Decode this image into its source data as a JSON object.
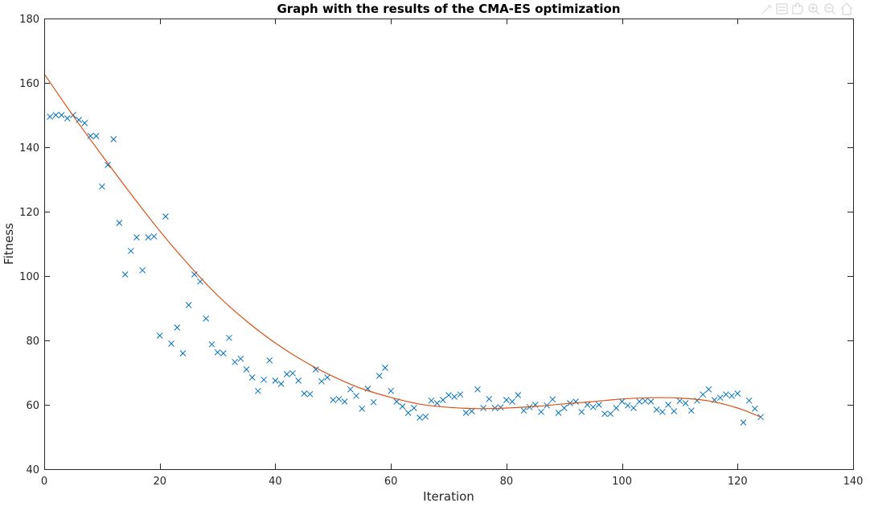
{
  "window": {
    "toolbar_icons": [
      "brush-icon",
      "data-cursor-icon",
      "pan-icon",
      "zoom-in-icon",
      "zoom-out-icon",
      "home-icon"
    ]
  },
  "chart_data": {
    "type": "scatter",
    "title": "Graph with the results of the CMA-ES optimization",
    "xlabel": "Iteration",
    "ylabel": "Fitness",
    "xlim": [
      0,
      140
    ],
    "ylim": [
      40,
      180
    ],
    "xticks": [
      0,
      20,
      40,
      60,
      80,
      100,
      120,
      140
    ],
    "yticks": [
      40,
      60,
      80,
      100,
      120,
      140,
      160,
      180
    ],
    "grid": false,
    "box": true,
    "series": [
      {
        "kind": "scatter",
        "marker": "x",
        "color": "#0072BD",
        "x": [
          1,
          2,
          3,
          4,
          5,
          6,
          7,
          8,
          9,
          10,
          11,
          12,
          13,
          14,
          15,
          16,
          17,
          18,
          19,
          20,
          21,
          22,
          23,
          24,
          25,
          26,
          27,
          28,
          29,
          30,
          31,
          32,
          33,
          34,
          35,
          36,
          37,
          38,
          39,
          40,
          41,
          42,
          43,
          44,
          45,
          46,
          47,
          48,
          49,
          50,
          51,
          52,
          53,
          54,
          55,
          56,
          57,
          58,
          59,
          60,
          61,
          62,
          63,
          64,
          65,
          66,
          67,
          68,
          69,
          70,
          71,
          72,
          73,
          74,
          75,
          76,
          77,
          78,
          79,
          80,
          81,
          82,
          83,
          84,
          85,
          86,
          87,
          88,
          89,
          90,
          91,
          92,
          93,
          94,
          95,
          96,
          97,
          98,
          99,
          100,
          101,
          102,
          103,
          104,
          105,
          106,
          107,
          108,
          109,
          110,
          111,
          112,
          113,
          114,
          115,
          116,
          117,
          118,
          119,
          120,
          121,
          122,
          123,
          124
        ],
        "y": [
          149.5,
          150,
          150,
          149,
          150,
          148.5,
          147.5,
          143.5,
          143.5,
          127.8,
          134.5,
          142.5,
          116.5,
          100.5,
          107.8,
          112,
          101.8,
          112,
          112.3,
          81.5,
          118.5,
          79,
          84,
          76,
          91,
          100.5,
          98.3,
          86.8,
          78.8,
          76.3,
          76,
          80.8,
          73.3,
          74.3,
          71,
          68.5,
          64.3,
          67.8,
          73.8,
          67.5,
          66.5,
          69.5,
          69.8,
          67.5,
          63.5,
          63.3,
          71,
          67.3,
          68.5,
          61.5,
          61.8,
          61,
          64.8,
          62.8,
          58.8,
          65,
          60.8,
          69,
          71.5,
          64.3,
          61,
          59.5,
          57.5,
          59,
          56,
          56.3,
          61.3,
          60.5,
          61.5,
          63,
          62.5,
          63.2,
          57.5,
          58,
          64.8,
          59,
          61.8,
          59,
          59.2,
          61.5,
          61,
          63,
          58.2,
          59.3,
          60,
          57.8,
          59.8,
          61.7,
          57.5,
          59,
          60.5,
          61,
          57.8,
          60,
          59.3,
          60,
          57.2,
          57.2,
          59,
          61,
          59.8,
          59,
          61,
          61.2,
          61,
          58.5,
          57.8,
          60,
          58,
          61.2,
          60.5,
          58.2,
          61.3,
          63.2,
          64.8,
          61.5,
          62.2,
          63.2,
          62.8,
          63.5,
          54.5,
          61.3,
          58.8,
          56.2
        ]
      },
      {
        "kind": "line",
        "color": "#D95319",
        "fit": "cubic",
        "x": [
          0,
          5,
          10,
          15,
          20,
          25,
          30,
          35,
          40,
          45,
          50,
          55,
          60,
          65,
          70,
          75,
          80,
          85,
          90,
          95,
          100,
          105,
          110,
          115,
          120,
          124
        ],
        "y": [
          162.8,
          149.8,
          137.5,
          125.5,
          114,
          103.5,
          94,
          86,
          79.2,
          73.5,
          68.8,
          65,
          62.3,
          60.2,
          59.2,
          58.8,
          59,
          59.5,
          60.3,
          61,
          61.8,
          62.2,
          62.1,
          61.2,
          59,
          56.2
        ]
      }
    ]
  }
}
